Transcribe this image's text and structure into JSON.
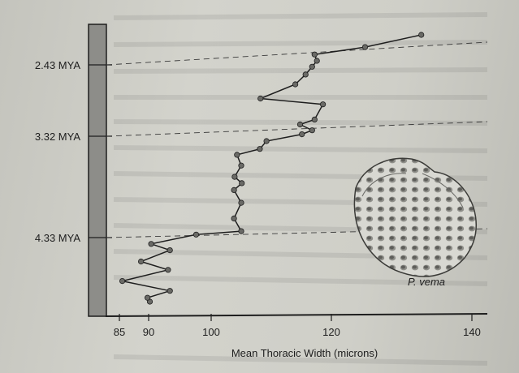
{
  "chart_data": {
    "type": "line",
    "xlabel": "Mean Thoracic Width (microns)",
    "x_ticks": [
      85,
      90,
      100,
      120,
      140
    ],
    "xlim": [
      80,
      142
    ],
    "time_markers": [
      {
        "label": "2.43 MYA"
      },
      {
        "label": "3.32 MYA"
      },
      {
        "label": "4.33 MYA"
      }
    ],
    "species_label": "P. vema",
    "series": [
      {
        "points": [
          {
            "x": 90.2,
            "t": 0.0
          },
          {
            "x": 89.8,
            "t": 0.08
          },
          {
            "x": 93.4,
            "t": 0.22
          },
          {
            "x": 85.5,
            "t": 0.42
          },
          {
            "x": 93.1,
            "t": 0.65
          },
          {
            "x": 88.7,
            "t": 0.82
          },
          {
            "x": 93.4,
            "t": 1.05
          },
          {
            "x": 90.4,
            "t": 1.18
          },
          {
            "x": 97.6,
            "t": 1.37
          },
          {
            "x": 105.0,
            "t": 1.44
          },
          {
            "x": 103.8,
            "t": 1.7
          },
          {
            "x": 105.0,
            "t": 2.02
          },
          {
            "x": 103.8,
            "t": 2.28
          },
          {
            "x": 105.1,
            "t": 2.42
          },
          {
            "x": 103.9,
            "t": 2.55
          },
          {
            "x": 105.0,
            "t": 2.78
          },
          {
            "x": 104.3,
            "t": 3.0
          },
          {
            "x": 108.1,
            "t": 3.12
          },
          {
            "x": 109.2,
            "t": 3.28
          },
          {
            "x": 115.1,
            "t": 3.42
          },
          {
            "x": 116.8,
            "t": 3.5
          },
          {
            "x": 114.8,
            "t": 3.62
          },
          {
            "x": 117.2,
            "t": 3.72
          },
          {
            "x": 118.6,
            "t": 4.03
          },
          {
            "x": 108.2,
            "t": 4.15
          },
          {
            "x": 114.0,
            "t": 4.44
          },
          {
            "x": 115.7,
            "t": 4.64
          },
          {
            "x": 116.8,
            "t": 4.8
          },
          {
            "x": 117.6,
            "t": 4.92
          },
          {
            "x": 117.2,
            "t": 5.05
          },
          {
            "x": 124.8,
            "t": 5.2
          },
          {
            "x": 132.8,
            "t": 5.45
          }
        ]
      }
    ]
  }
}
